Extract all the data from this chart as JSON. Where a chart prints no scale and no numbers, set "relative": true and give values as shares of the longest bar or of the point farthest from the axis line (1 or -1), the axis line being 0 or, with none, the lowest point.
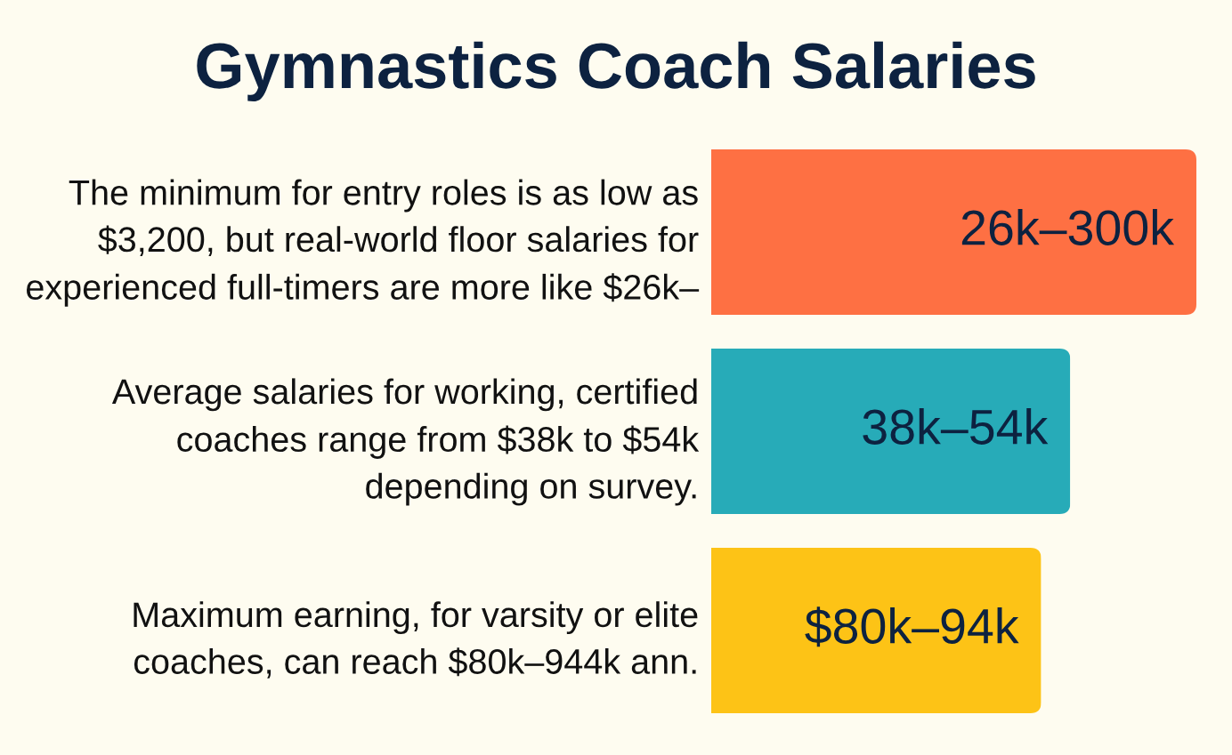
{
  "chart_data": {
    "type": "bar",
    "title": "Gymnastics Coach Salaries",
    "orientation": "horizontal",
    "relative": true,
    "categories": [
      "The minimum for entry roles is as low as\n$3,200, but real-world floor salaries for\nexperienced full-timers are more like $26k–",
      "Average salaries for working, certified\ncoaches range from $38k to $54k\ndepending on survey.",
      "Maximum earning, for varsity or elite\ncoaches, can reach $80k–944k ann."
    ],
    "values": [
      1,
      0.74,
      0.68
    ],
    "colors": [
      "#fe7043",
      "#27abb8",
      "#fdc316"
    ],
    "annotations": [
      {
        "text": "26k–300k",
        "x": 1,
        "y": "The minimum for entry roles is as low as\n$3,200, but real-world floor salaries for\nexperienced full-timers are more like $26k–"
      },
      {
        "text": "38k–54k",
        "x": 0.74,
        "y": "Average salaries for working, certified\ncoaches range from $38k to $54k\ndepending on survey."
      },
      {
        "text": "$80k–94k",
        "x": 0.68,
        "y": "Maximum earning, for varsity or elite\ncoaches, can reach $80k–944k ann."
      }
    ],
    "tick_labels": "y"
  }
}
